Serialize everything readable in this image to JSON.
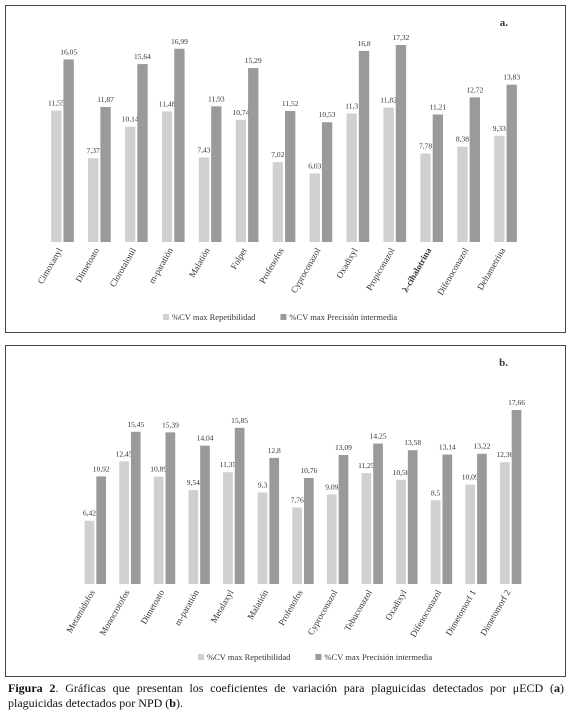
{
  "chart_data": [
    {
      "type": "bar",
      "panel_label": "a.",
      "categories": [
        "Cimoxanyl",
        "Dimetoato",
        "Clorotalonil",
        "m-paratión",
        "Malatión",
        "Folpet",
        "Profenofos",
        "Cyproconazol",
        "Oxadixyl",
        "Propiconazol",
        "λ-cihalotrina",
        "Difenoconazol",
        "Deltametrina"
      ],
      "series": [
        {
          "name": "%CV max Repetibilidad",
          "color": "#d0d0d0",
          "values": [
            11.55,
            7.37,
            10.14,
            11.48,
            7.43,
            10.74,
            7.02,
            6.03,
            11.3,
            11.82,
            7.78,
            8.38,
            9.33
          ],
          "value_labels": [
            "11,55",
            "7,37",
            "10,14",
            "11,48",
            "7,43",
            "10,74",
            "7,02",
            "6,03",
            "11,3",
            "11,82",
            "7,78",
            "8,38",
            "9,33"
          ]
        },
        {
          "name": "%CV max Precisión intermedia",
          "color": "#9a9a9a",
          "values": [
            16.05,
            11.87,
            15.64,
            16.99,
            11.93,
            15.29,
            11.52,
            10.53,
            16.8,
            17.32,
            11.21,
            12.72,
            13.83
          ],
          "value_labels": [
            "16,05",
            "11,87",
            "15,64",
            "16,99",
            "11,93",
            "15,29",
            "11,52",
            "10,53",
            "16,8",
            "17,32",
            "11,21",
            "12,72",
            "13,83"
          ]
        }
      ]
    },
    {
      "type": "bar",
      "panel_label": "b.",
      "categories": [
        "Metamidofos",
        "Monocrotofos",
        "Dimetoato",
        "m-paratión",
        "Metalaxyl",
        "Malatión",
        "Profenofos",
        "Cyproconazol",
        "Tebuconazol",
        "Oxadixyl",
        "Difenoconazol",
        "Dimetomorf 1",
        "Dimetomorf 2"
      ],
      "series": [
        {
          "name": "%CV max Repetibilidad",
          "color": "#d0d0d0",
          "values": [
            6.42,
            12.45,
            10.89,
            9.54,
            11.35,
            9.3,
            7.76,
            9.09,
            11.25,
            10.58,
            8.5,
            10.09,
            12.36
          ],
          "value_labels": [
            "6,42",
            "12,45",
            "10,89",
            "9,54",
            "11,35",
            "9,3",
            "7,76",
            "9,09",
            "11,25",
            "10,58",
            "8,5",
            "10,09",
            "12,36"
          ]
        },
        {
          "name": "%CV max Precisión intermedia",
          "color": "#9a9a9a",
          "values": [
            10.92,
            15.45,
            15.39,
            14.04,
            15.85,
            12.8,
            10.76,
            13.09,
            14.25,
            13.58,
            13.14,
            13.22,
            17.66
          ],
          "value_labels": [
            "10,92",
            "15,45",
            "15,39",
            "14,04",
            "15,85",
            "12,8",
            "10,76",
            "13,09",
            "14,25",
            "13,58",
            "13,14",
            "13,22",
            "17,66"
          ]
        }
      ]
    }
  ],
  "caption": [
    {
      "text": "Figura 2",
      "bold": true
    },
    {
      "text": ". Gráficas que presentan los coeficientes de variación para plaguicidas detectados por μECD (",
      "bold": false
    },
    {
      "text": "a",
      "bold": true
    },
    {
      "text": ") plaguicidas detectados por NPD (",
      "bold": false
    },
    {
      "text": "b",
      "bold": true
    },
    {
      "text": ").",
      "bold": false
    }
  ]
}
